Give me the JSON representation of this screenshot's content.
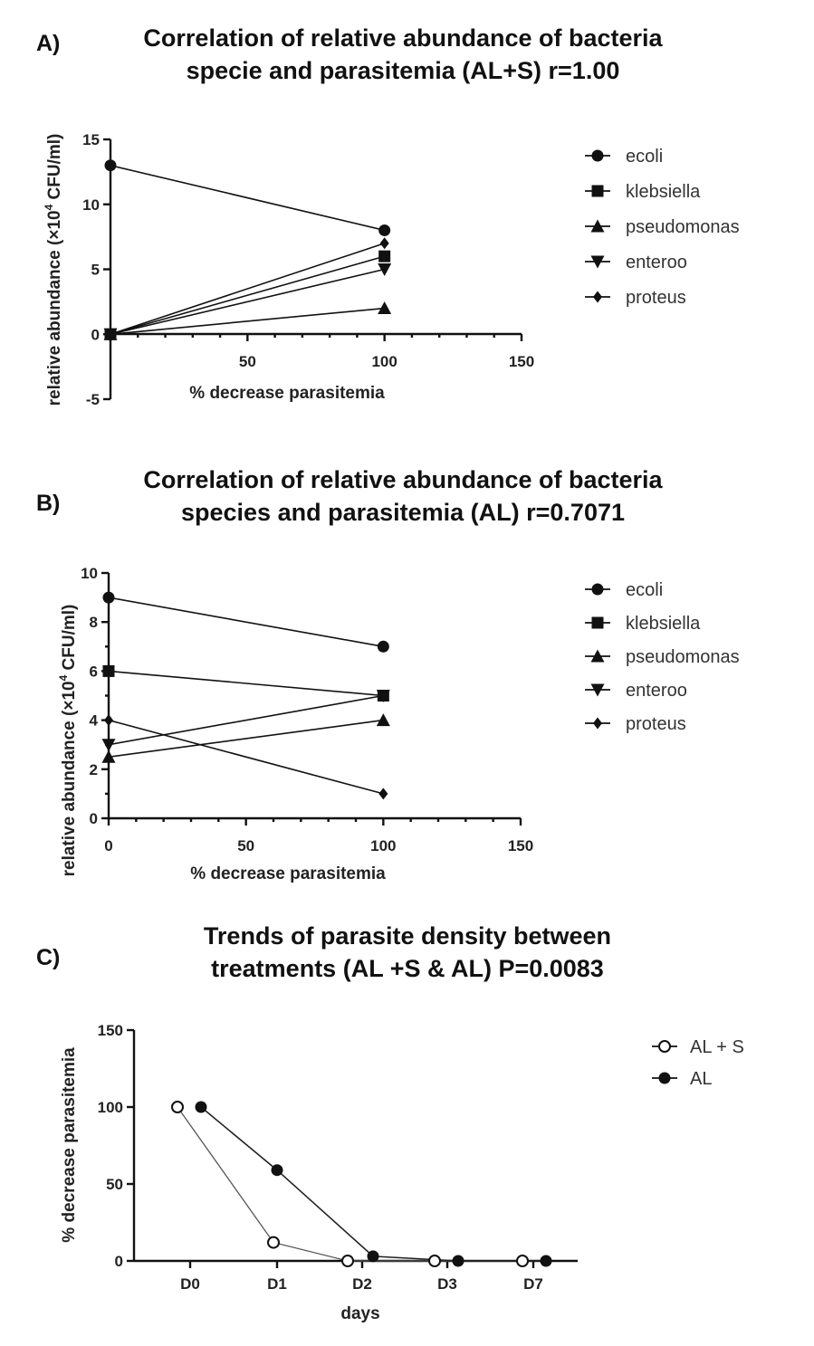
{
  "panels": {
    "a": {
      "letter": "A)",
      "title_line1": "Correlation of relative abundance of bacteria",
      "title_line2": "specie and parasitemia (AL+S) r=1.00"
    },
    "b": {
      "letter": "B)",
      "title_line1": "Correlation of relative abundance of bacteria",
      "title_line2": "species and parasitemia (AL) r=0.7071"
    },
    "c": {
      "letter": "C)",
      "title_line1": "Trends of parasite density between",
      "title_line2": "treatments (AL +S  & AL) P=0.0083"
    }
  },
  "chart_data": [
    {
      "type": "line",
      "title": "Correlation of relative abundance of bacteria specie and parasitemia (AL+S) r=1.00",
      "xlabel": "% decrease parasitemia",
      "ylabel": "relative abundance (×10⁴ CFU/ml)",
      "xlim": [
        0,
        150
      ],
      "ylim": [
        -5,
        15
      ],
      "xticks": [
        50,
        100,
        150
      ],
      "yticks": [
        -5,
        0,
        5,
        10,
        15
      ],
      "grid": false,
      "legend_position": "right",
      "series": [
        {
          "name": "ecoli",
          "marker": "circle",
          "x": [
            0,
            100
          ],
          "y": [
            13,
            8
          ]
        },
        {
          "name": "klebsiella",
          "marker": "square",
          "x": [
            0,
            100
          ],
          "y": [
            0,
            6
          ]
        },
        {
          "name": "pseudomonas",
          "marker": "triangle-up",
          "x": [
            0,
            100
          ],
          "y": [
            0,
            2
          ]
        },
        {
          "name": "enteroo",
          "marker": "triangle-down",
          "x": [
            0,
            100
          ],
          "y": [
            0,
            5
          ]
        },
        {
          "name": "proteus",
          "marker": "diamond",
          "x": [
            0,
            100
          ],
          "y": [
            0,
            7
          ]
        }
      ]
    },
    {
      "type": "line",
      "title": "Correlation of relative abundance of bacteria species and parasitemia (AL) r=0.7071",
      "xlabel": "% decrease parasitemia",
      "ylabel": "relative abundance (×10⁴ CFU/ml)",
      "xlim": [
        0,
        150
      ],
      "ylim": [
        0,
        10
      ],
      "xticks": [
        0,
        50,
        100,
        150
      ],
      "yticks": [
        0,
        2,
        4,
        6,
        8,
        10
      ],
      "grid": false,
      "legend_position": "right",
      "series": [
        {
          "name": "ecoli",
          "marker": "circle",
          "x": [
            0,
            100
          ],
          "y": [
            9,
            7
          ]
        },
        {
          "name": "klebsiella",
          "marker": "square",
          "x": [
            0,
            100
          ],
          "y": [
            6,
            5
          ]
        },
        {
          "name": "pseudomonas",
          "marker": "triangle-up",
          "x": [
            0,
            100
          ],
          "y": [
            2.5,
            4
          ]
        },
        {
          "name": "enteroo",
          "marker": "triangle-down",
          "x": [
            0,
            100
          ],
          "y": [
            3,
            5
          ]
        },
        {
          "name": "proteus",
          "marker": "diamond",
          "x": [
            0,
            100
          ],
          "y": [
            4,
            1
          ]
        }
      ]
    },
    {
      "type": "line",
      "title": "Trends of parasite density between treatments (AL +S  & AL) P=0.0083",
      "xlabel": "days",
      "ylabel": "% decrease parasitemia",
      "categories": [
        "D0",
        "D1",
        "D2",
        "D3",
        "D7"
      ],
      "ylim": [
        0,
        150
      ],
      "yticks": [
        0,
        50,
        100,
        150
      ],
      "grid": false,
      "legend_position": "top-right",
      "series": [
        {
          "name": "AL + S",
          "marker": "open-circle",
          "values": [
            100,
            12,
            0,
            0,
            0
          ]
        },
        {
          "name": "AL",
          "marker": "filled-circle",
          "values": [
            100,
            59,
            3,
            0,
            0
          ]
        }
      ]
    }
  ]
}
